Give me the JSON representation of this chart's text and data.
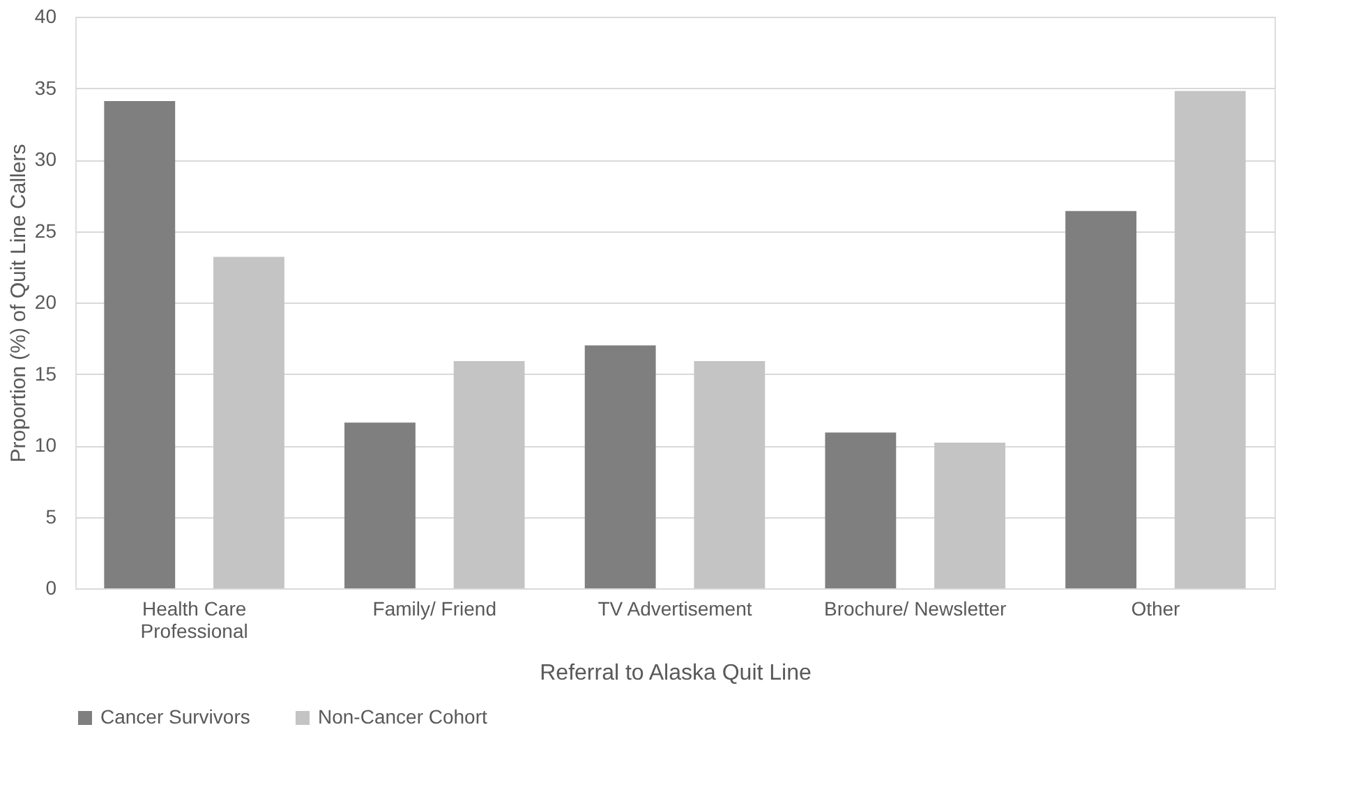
{
  "chart_data": {
    "type": "bar",
    "xlabel": "Referral to Alaska Quit Line",
    "ylabel": "Proportion (%) of Quit Line Callers",
    "categories": [
      "Health Care Professional",
      "Family/ Friend",
      "TV Advertisement",
      "Brochure/ Newsletter",
      "Other"
    ],
    "series": [
      {
        "name": "Cancer Survivors",
        "color": "#7f7f7f",
        "values": [
          34.1,
          11.6,
          17.0,
          10.9,
          26.4
        ]
      },
      {
        "name": "Non-Cancer Cohort",
        "color": "#c4c4c4",
        "values": [
          23.2,
          15.9,
          15.9,
          10.2,
          34.8
        ]
      }
    ],
    "ylim": [
      0,
      40
    ],
    "yticks": [
      0,
      5,
      10,
      15,
      20,
      25,
      30,
      35,
      40
    ],
    "grid": "y",
    "legend": "bottom"
  }
}
